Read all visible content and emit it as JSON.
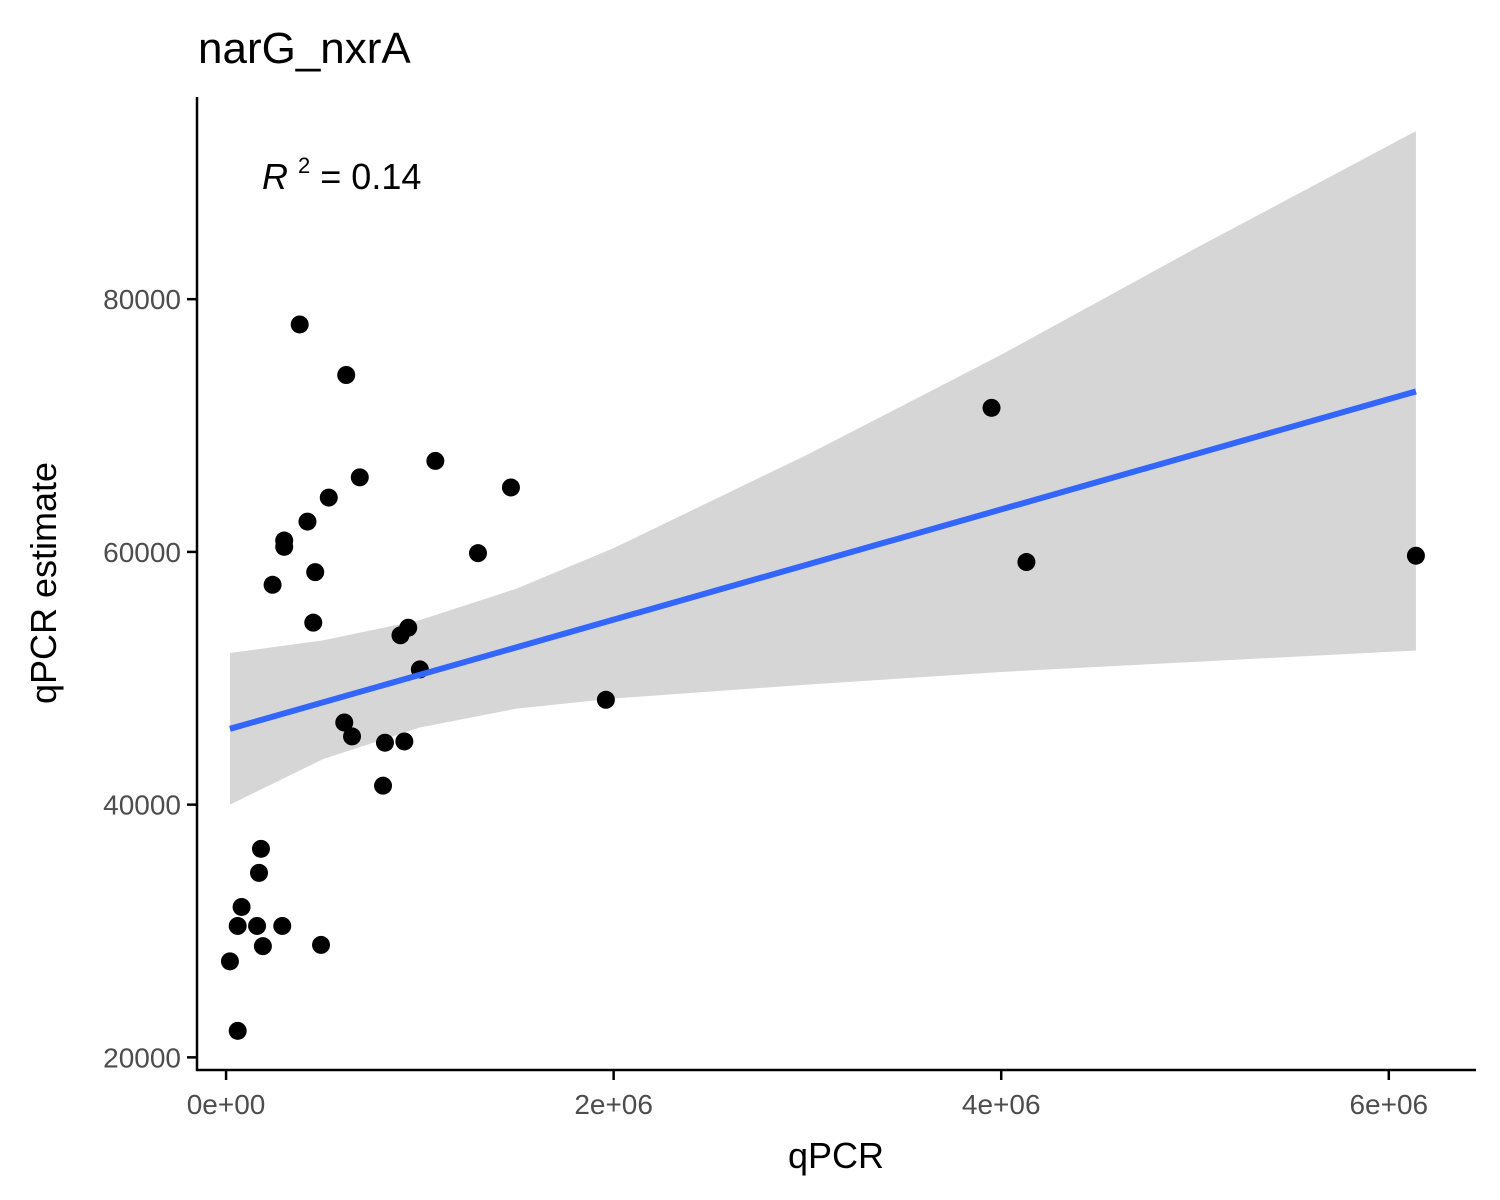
{
  "chart_data": {
    "type": "scatter",
    "title": "narG_nxrA",
    "xlabel": "qPCR",
    "ylabel": "qPCR estimate",
    "xlim": [
      -150000,
      6450000
    ],
    "ylim": [
      19000,
      96000
    ],
    "x_ticks": [
      0,
      2000000,
      4000000,
      6000000
    ],
    "x_tick_labels": [
      "0e+00",
      "2e+06",
      "4e+06",
      "6e+06"
    ],
    "y_ticks": [
      20000,
      40000,
      60000,
      80000
    ],
    "y_tick_labels": [
      "20000",
      "40000",
      "60000",
      "80000"
    ],
    "grid": false,
    "annotation": {
      "symbol": "R",
      "superscript": "2",
      "text": " = 0.14"
    },
    "points": [
      {
        "x": 20000,
        "y": 27600
      },
      {
        "x": 60000,
        "y": 22100
      },
      {
        "x": 60000,
        "y": 30400
      },
      {
        "x": 80000,
        "y": 31900
      },
      {
        "x": 160000,
        "y": 30400
      },
      {
        "x": 170000,
        "y": 34600
      },
      {
        "x": 180000,
        "y": 36500
      },
      {
        "x": 190000,
        "y": 28800
      },
      {
        "x": 240000,
        "y": 57400
      },
      {
        "x": 290000,
        "y": 30400
      },
      {
        "x": 300000,
        "y": 60400
      },
      {
        "x": 300000,
        "y": 60900
      },
      {
        "x": 380000,
        "y": 78000
      },
      {
        "x": 420000,
        "y": 62400
      },
      {
        "x": 450000,
        "y": 54400
      },
      {
        "x": 460000,
        "y": 58400
      },
      {
        "x": 490000,
        "y": 28900
      },
      {
        "x": 530000,
        "y": 64300
      },
      {
        "x": 610000,
        "y": 46500
      },
      {
        "x": 620000,
        "y": 74000
      },
      {
        "x": 650000,
        "y": 45400
      },
      {
        "x": 690000,
        "y": 65900
      },
      {
        "x": 810000,
        "y": 41500
      },
      {
        "x": 820000,
        "y": 44900
      },
      {
        "x": 900000,
        "y": 53400
      },
      {
        "x": 920000,
        "y": 45000
      },
      {
        "x": 940000,
        "y": 54000
      },
      {
        "x": 1000000,
        "y": 50700
      },
      {
        "x": 1080000,
        "y": 67200
      },
      {
        "x": 1300000,
        "y": 59900
      },
      {
        "x": 1470000,
        "y": 65100
      },
      {
        "x": 1960000,
        "y": 48300
      },
      {
        "x": 3950000,
        "y": 71400
      },
      {
        "x": 4130000,
        "y": 59200
      },
      {
        "x": 6140000,
        "y": 59700
      }
    ],
    "fit": {
      "type": "linear",
      "color": "#3366ff",
      "x": [
        20000,
        6140000
      ],
      "y": [
        46000,
        72700
      ],
      "band_color": "#d6d6d6",
      "band": [
        {
          "x": 20000,
          "lower": 40000,
          "upper": 52000
        },
        {
          "x": 500000,
          "lower": 43600,
          "upper": 53000
        },
        {
          "x": 1000000,
          "lower": 46100,
          "upper": 54600
        },
        {
          "x": 1500000,
          "lower": 47600,
          "upper": 57100
        },
        {
          "x": 2000000,
          "lower": 48400,
          "upper": 60300
        },
        {
          "x": 3000000,
          "lower": 49500,
          "upper": 67700
        },
        {
          "x": 4000000,
          "lower": 50500,
          "upper": 75600
        },
        {
          "x": 5000000,
          "lower": 51300,
          "upper": 84000
        },
        {
          "x": 6140000,
          "lower": 52200,
          "upper": 93300
        }
      ]
    }
  }
}
